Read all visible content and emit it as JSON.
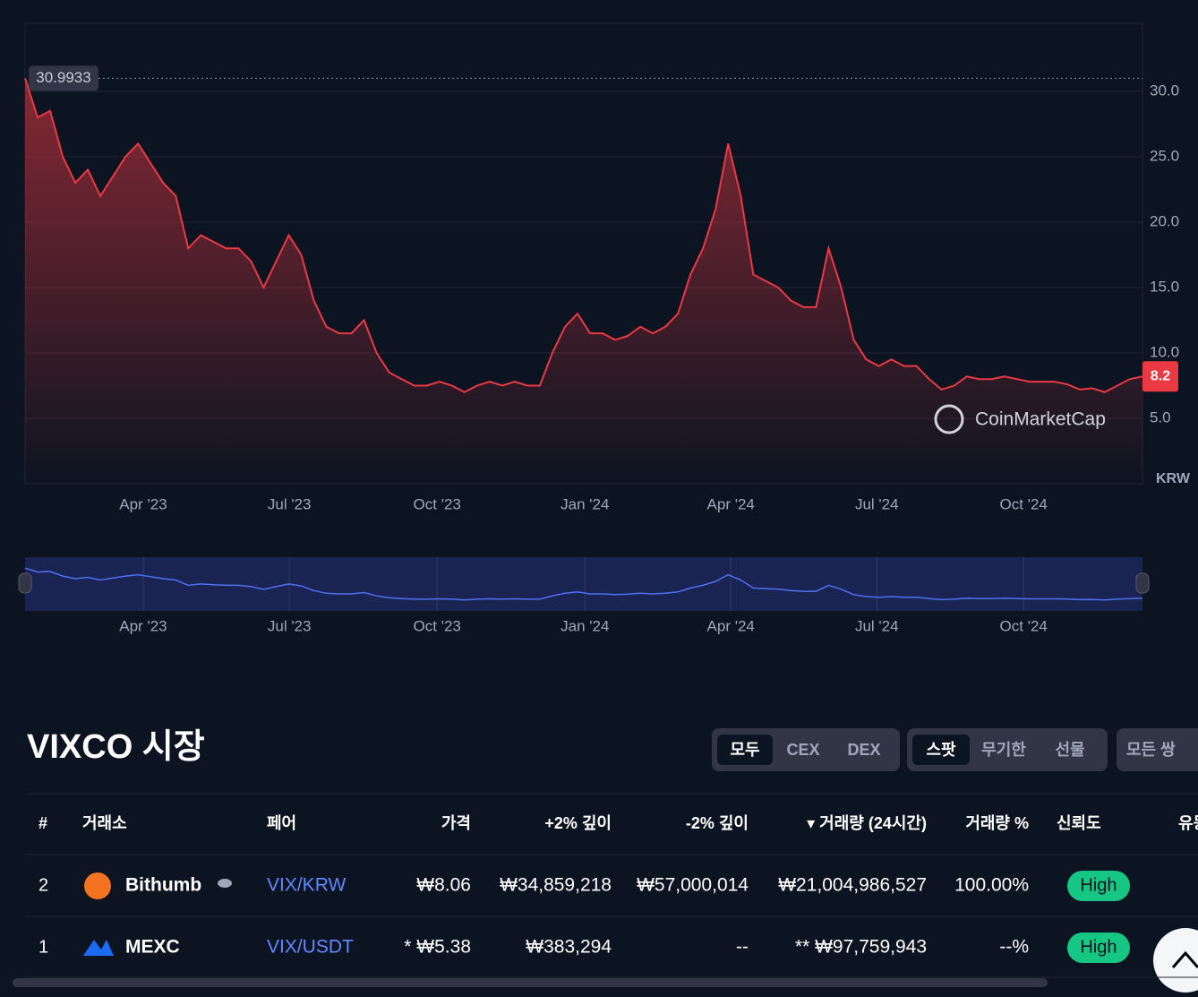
{
  "chart_data": {
    "type": "line",
    "series": [
      {
        "color": "#ea3943",
        "values": [
          30.9933,
          28,
          28.5,
          25,
          23,
          24,
          22,
          23.5,
          25,
          26,
          24.5,
          23,
          22,
          18,
          19,
          18.5,
          18,
          18,
          17,
          15,
          17,
          19,
          17.5,
          14,
          12,
          11.5,
          11.5,
          12.5,
          10,
          8.5,
          8,
          7.5,
          7.5,
          7.8,
          7.5,
          7.0,
          7.5,
          7.8,
          7.5,
          7.8,
          7.5,
          7.5,
          10,
          12,
          13,
          11.5,
          11.5,
          11,
          11.3,
          12,
          11.5,
          12,
          13,
          16,
          18,
          21,
          26,
          22,
          16,
          15.5,
          15,
          14,
          13.5,
          13.5,
          18,
          15,
          11,
          9.5,
          9,
          9.5,
          9,
          9,
          8,
          7.2,
          7.5,
          8.2,
          8,
          8,
          8.2,
          8,
          7.8,
          7.8,
          7.8,
          7.6,
          7.2,
          7.3,
          7.0,
          7.5,
          8,
          8.2
        ]
      }
    ],
    "xlim": [
      0,
      89
    ],
    "xticks": [
      {
        "value": 9.41,
        "label": "Apr '23"
      },
      {
        "value": 21.05,
        "label": "Jul '23"
      },
      {
        "value": 32.82,
        "label": "Oct '23"
      },
      {
        "value": 44.59,
        "label": "Jan '24"
      },
      {
        "value": 56.21,
        "label": "Apr '24"
      },
      {
        "value": 67.84,
        "label": "Jul '24"
      },
      {
        "value": 79.53,
        "label": "Oct '24"
      }
    ],
    "ylim": [
      0,
      35.2
    ],
    "yticks": [
      {
        "value": 5,
        "label": "5.0"
      },
      {
        "value": 10,
        "label": "10.0"
      },
      {
        "value": 15,
        "label": "15.0"
      },
      {
        "value": 20,
        "label": "20.0"
      },
      {
        "value": 25,
        "label": "25.0"
      },
      {
        "value": 30,
        "label": "30.0"
      }
    ],
    "max_price": 30.9933,
    "currency": "KRW",
    "watermark": "CoinMarketCap",
    "grid": true
  },
  "markets": {
    "title": "VIXCO 시장",
    "filters": [
      [
        "모두",
        "CEX",
        "DEX"
      ],
      [
        "스팟",
        "무기한",
        "선물"
      ]
    ],
    "pair_select": "모든 쌍",
    "table": {
      "headers": [
        "#",
        "거래소",
        "페어",
        "가격",
        "+2% 깊이",
        "-2% 깊이",
        "▾ 거래량 (24시간)",
        "거래량 %",
        "신뢰도",
        "유동성"
      ],
      "rows": [
        [
          "2",
          "Bithumb",
          "VIX/KRW",
          "₩8.06",
          "₩34,859,218",
          "₩57,000,014",
          "₩21,004,986,527",
          "100.00%",
          "High"
        ],
        [
          "1",
          "MEXC",
          "VIX/USDT",
          "* ₩5.38",
          "₩383,294",
          "--",
          "** ₩97,759,943",
          "--%",
          "High"
        ]
      ]
    }
  }
}
